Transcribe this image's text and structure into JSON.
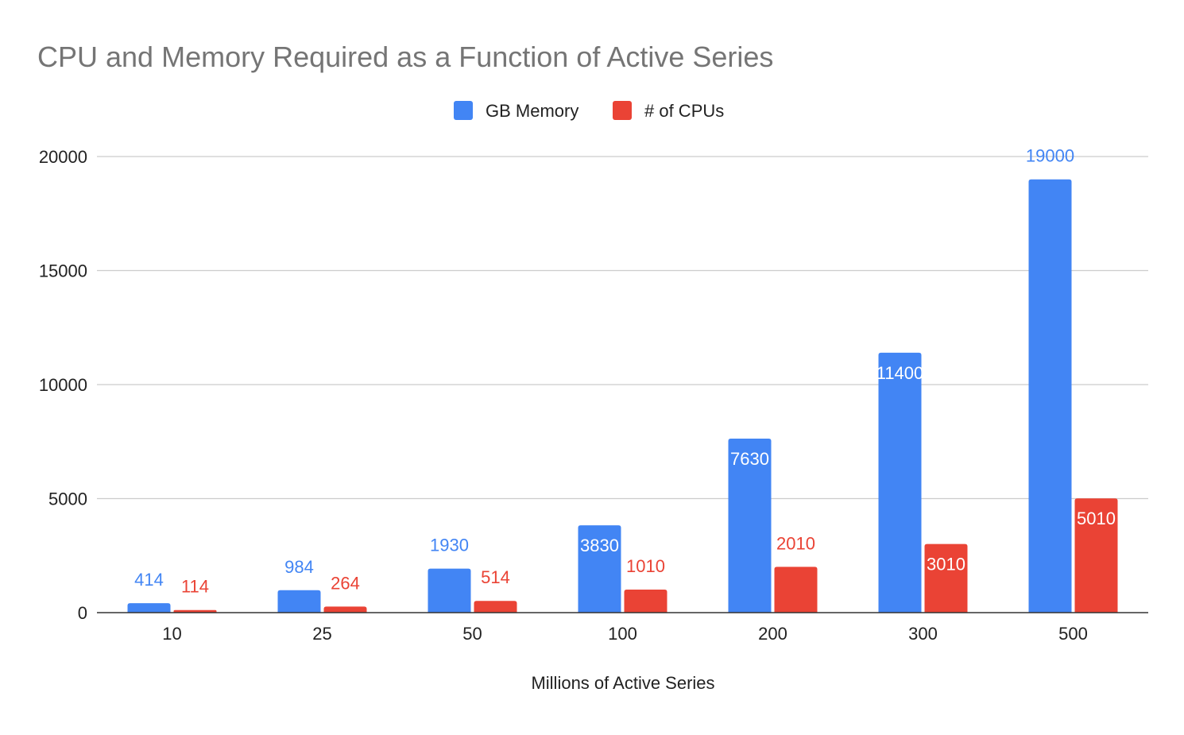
{
  "chart_data": {
    "type": "bar",
    "title": "CPU and Memory Required as a Function of Active Series",
    "xlabel": "Millions of Active Series",
    "ylabel": "",
    "categories": [
      "10",
      "25",
      "50",
      "100",
      "200",
      "300",
      "500"
    ],
    "series": [
      {
        "name": "GB Memory",
        "color": "#4285F4",
        "values": [
          414,
          984,
          1930,
          3830,
          7630,
          11400,
          19000
        ]
      },
      {
        "name": "# of CPUs",
        "color": "#EA4335",
        "values": [
          114,
          264,
          514,
          1010,
          2010,
          3010,
          5010
        ]
      }
    ],
    "ylim": [
      0,
      20000
    ],
    "yticks": [
      0,
      5000,
      10000,
      15000,
      20000
    ],
    "grid": true,
    "legend_position": "top-center"
  }
}
